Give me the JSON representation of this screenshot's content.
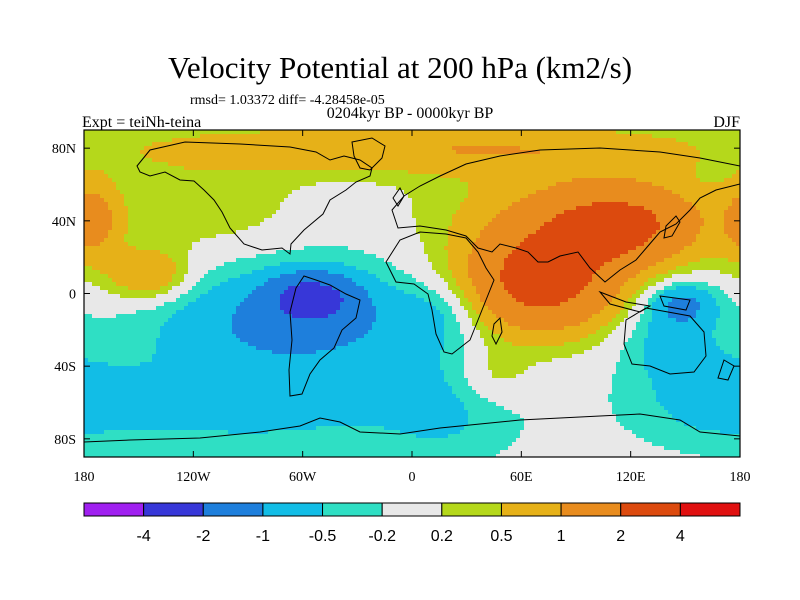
{
  "title": "Velocity Potential at 200 hPa (km2/s)",
  "stats": "rmsd= 1.03372 diff= -4.28458e-05",
  "subtitle": "0204kyr BP - 0000kyr BP",
  "left_label": "Expt = teiNh-teina",
  "right_label": "DJF",
  "axes": {
    "x_ticks": [
      {
        "value": -180,
        "label": "180"
      },
      {
        "value": -120,
        "label": "120W"
      },
      {
        "value": -60,
        "label": "60W"
      },
      {
        "value": 0,
        "label": "0"
      },
      {
        "value": 60,
        "label": "60E"
      },
      {
        "value": 120,
        "label": "120E"
      },
      {
        "value": 180,
        "label": "180"
      }
    ],
    "y_ticks": [
      {
        "value": 80,
        "label": "80N"
      },
      {
        "value": 40,
        "label": "40N"
      },
      {
        "value": 0,
        "label": "0"
      },
      {
        "value": -40,
        "label": "40S"
      },
      {
        "value": -80,
        "label": "80S"
      }
    ],
    "lon_range": [
      -180,
      180
    ],
    "lat_range": [
      -90,
      90
    ]
  },
  "colorbar": {
    "colors": [
      "#a020f0",
      "#3737d8",
      "#1e7fdc",
      "#12bde6",
      "#2fdfc4",
      "#e8e8e8",
      "#b5d81b",
      "#e6b118",
      "#e88c1e",
      "#dc4a0e",
      "#e01010"
    ],
    "labels": [
      "-4",
      "-2",
      "-1",
      "-0.5",
      "-0.2",
      "0.2",
      "0.5",
      "1",
      "2",
      "4"
    ]
  },
  "field": {
    "levels": [
      -4,
      -2,
      -1,
      -0.5,
      -0.2,
      0.2,
      0.5,
      1,
      2,
      4
    ],
    "base": 0,
    "centers": [
      {
        "lon": -55,
        "lat": -2,
        "amp": -1.9,
        "slon": 16,
        "slat": 9
      },
      {
        "lon": -55,
        "lat": -18,
        "amp": -0.8,
        "slon": 45,
        "slat": 18
      },
      {
        "lon": -35,
        "lat": 5,
        "amp": -0.35,
        "slon": 70,
        "slat": 35
      },
      {
        "lon": -110,
        "lat": -15,
        "amp": -0.3,
        "slon": 40,
        "slat": 25
      },
      {
        "lon": -90,
        "lat": -65,
        "amp": -0.55,
        "slon": 90,
        "slat": 20
      },
      {
        "lon": 20,
        "lat": -62,
        "amp": -0.35,
        "slon": 25,
        "slat": 25
      },
      {
        "lon": 148,
        "lat": -5,
        "amp": -1.1,
        "slon": 14,
        "slat": 9
      },
      {
        "lon": 140,
        "lat": -25,
        "amp": -0.6,
        "slon": 20,
        "slat": 14
      },
      {
        "lon": 165,
        "lat": -55,
        "amp": -0.5,
        "slon": 30,
        "slat": 18
      },
      {
        "lon": 15,
        "lat": -10,
        "amp": -0.4,
        "slon": 15,
        "slat": 12
      },
      {
        "lon": 70,
        "lat": 5,
        "amp": 2.4,
        "slon": 30,
        "slat": 20
      },
      {
        "lon": 115,
        "lat": 38,
        "amp": 1.8,
        "slon": 30,
        "slat": 15
      },
      {
        "lon": 80,
        "lat": 40,
        "amp": 0.8,
        "slon": 60,
        "slat": 25
      },
      {
        "lon": 0,
        "lat": 80,
        "amp": 0.9,
        "slon": 120,
        "slat": 10
      },
      {
        "lon": -145,
        "lat": 10,
        "amp": 1.1,
        "slon": 16,
        "slat": 10
      },
      {
        "lon": -175,
        "lat": 40,
        "amp": 1.1,
        "slon": 10,
        "slat": 15
      },
      {
        "lon": -110,
        "lat": 45,
        "amp": 0.5,
        "slon": 40,
        "slat": 20
      },
      {
        "lon": 45,
        "lat": -45,
        "amp": 0.5,
        "slon": 15,
        "slat": 12
      }
    ]
  }
}
